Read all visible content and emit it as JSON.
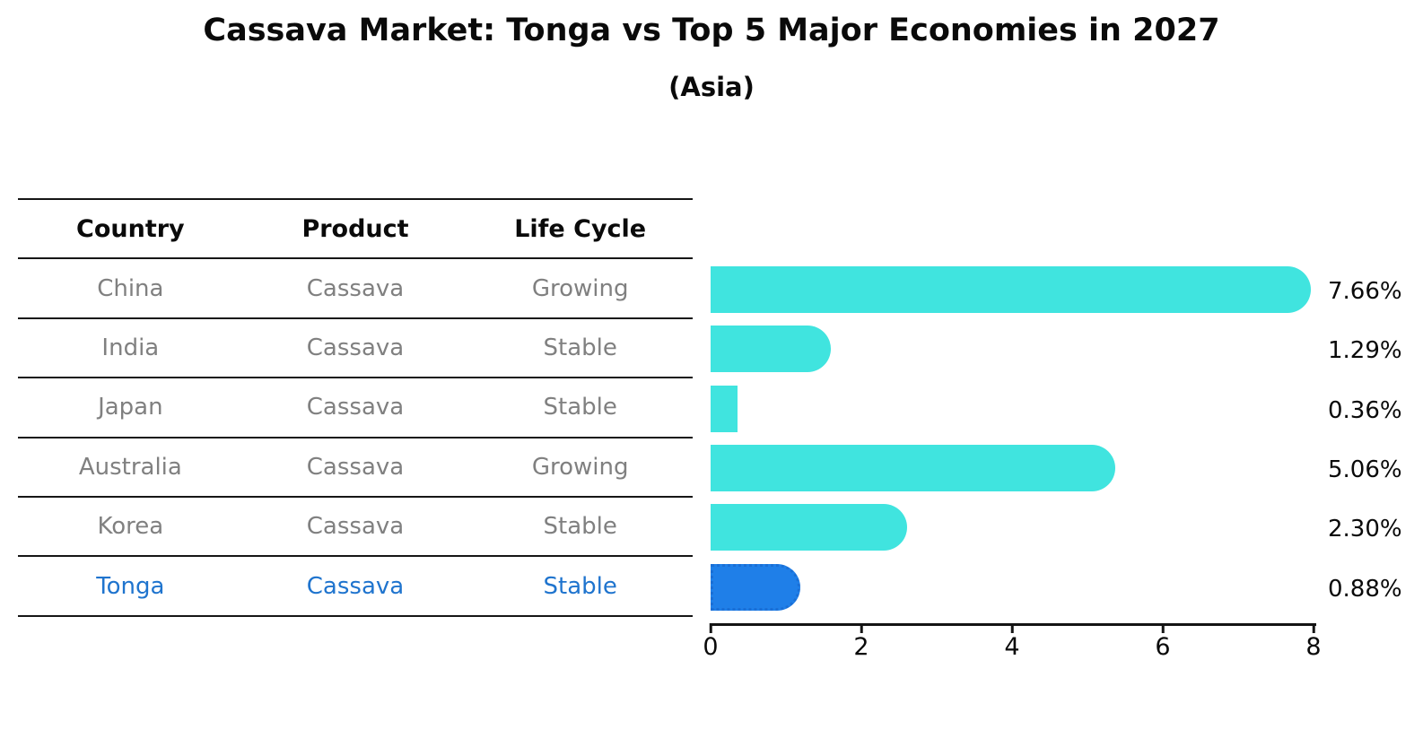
{
  "title": "Cassava Market: Tonga vs Top 5 Major Economies in 2027",
  "subtitle": "(Asia)",
  "table": {
    "headers": [
      "Country",
      "Product",
      "Life Cycle"
    ],
    "rows": [
      {
        "country": "China",
        "product": "Cassava",
        "life_cycle": "Growing",
        "highlighted": false
      },
      {
        "country": "India",
        "product": "Cassava",
        "life_cycle": "Stable",
        "highlighted": false
      },
      {
        "country": "Japan",
        "product": "Cassava",
        "life_cycle": "Stable",
        "highlighted": false
      },
      {
        "country": "Australia",
        "product": "Cassava",
        "life_cycle": "Growing",
        "highlighted": false
      },
      {
        "country": "Korea",
        "product": "Cassava",
        "life_cycle": "Stable",
        "highlighted": false
      },
      {
        "country": "Tonga",
        "product": "Cassava",
        "life_cycle": "Stable",
        "highlighted": true
      }
    ]
  },
  "chart_data": {
    "type": "bar",
    "orientation": "horizontal",
    "title": "Cassava Market: Tonga vs Top 5 Major Economies in 2027",
    "subtitle": "(Asia)",
    "categories": [
      "China",
      "India",
      "Japan",
      "Australia",
      "Korea",
      "Tonga"
    ],
    "values": [
      7.66,
      1.29,
      0.36,
      5.06,
      2.3,
      0.88
    ],
    "value_labels": [
      "7.66%",
      "1.29%",
      "0.36%",
      "5.06%",
      "2.30%",
      "0.88%"
    ],
    "xlim": [
      0,
      8
    ],
    "xticks": [
      "0",
      "2",
      "4",
      "6",
      "8"
    ],
    "highlight_index": 5,
    "grid": false,
    "legend": null
  },
  "colors": {
    "bar": "#40E4DF",
    "highlight_bar": "#1F7FE8",
    "highlight_border": "#1A6FD6",
    "highlight_text": "#1F74CE",
    "cell_text": "#808080",
    "axis": "#141414"
  }
}
